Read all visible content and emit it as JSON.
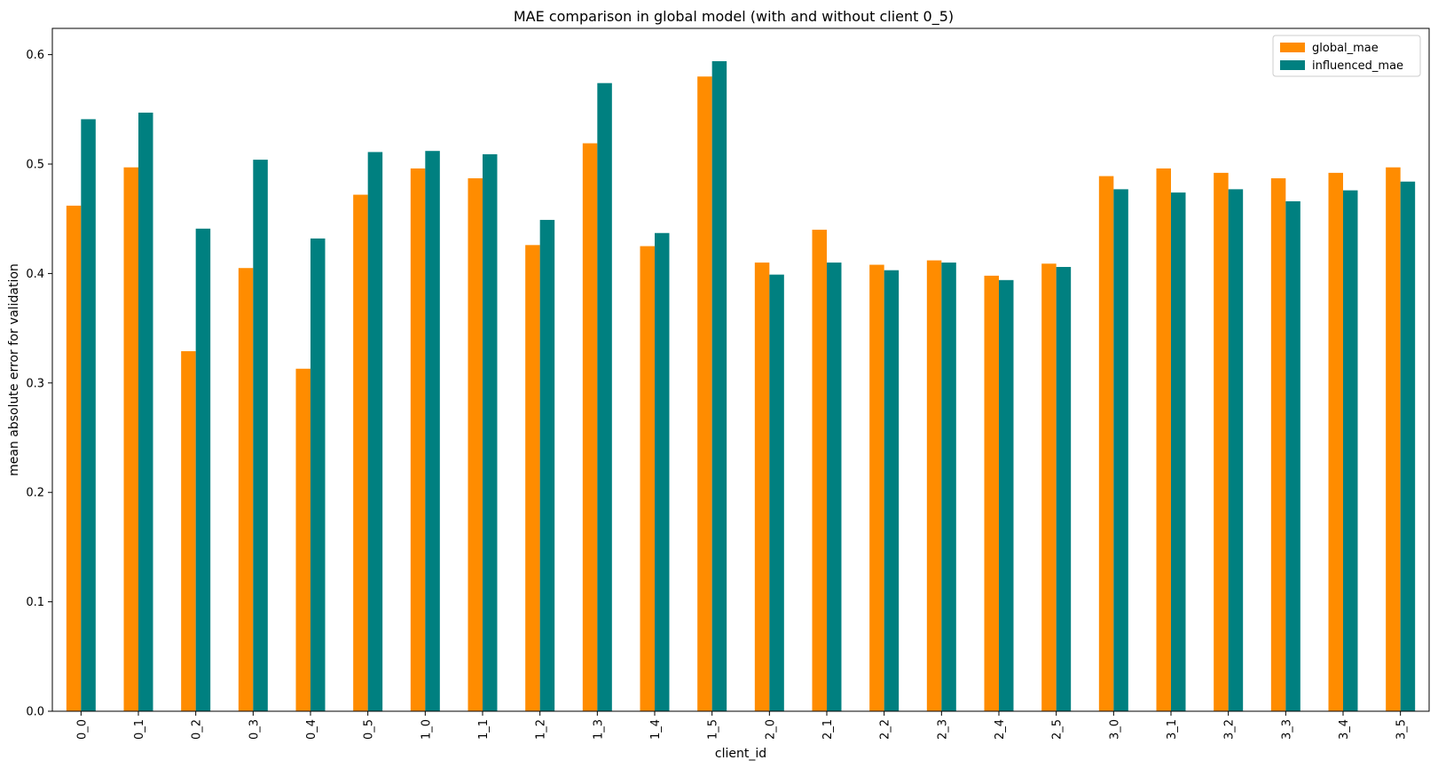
{
  "chart_data": {
    "type": "bar",
    "title": "MAE comparison in global model (with and without client 0_5)",
    "xlabel": "client_id",
    "ylabel": "mean absolute error for validation",
    "ylim": [
      0,
      0.624
    ],
    "yticks": [
      "0.0",
      "0.1",
      "0.2",
      "0.3",
      "0.4",
      "0.5",
      "0.6"
    ],
    "grid": false,
    "legend_position": "top-right",
    "categories": [
      "0_0",
      "0_1",
      "0_2",
      "0_3",
      "0_4",
      "0_5",
      "1_0",
      "1_1",
      "1_2",
      "1_3",
      "1_4",
      "1_5",
      "2_0",
      "2_1",
      "2_2",
      "2_3",
      "2_4",
      "2_5",
      "3_0",
      "3_1",
      "3_2",
      "3_3",
      "3_4",
      "3_5"
    ],
    "series": [
      {
        "name": "global_mae",
        "color": "#ff8c00",
        "values": [
          0.462,
          0.497,
          0.329,
          0.405,
          0.313,
          0.472,
          0.496,
          0.487,
          0.426,
          0.519,
          0.425,
          0.58,
          0.41,
          0.44,
          0.408,
          0.412,
          0.398,
          0.409,
          0.489,
          0.496,
          0.492,
          0.487,
          0.492,
          0.497
        ]
      },
      {
        "name": "influenced_mae",
        "color": "#008080",
        "values": [
          0.541,
          0.547,
          0.441,
          0.504,
          0.432,
          0.511,
          0.512,
          0.509,
          0.449,
          0.574,
          0.437,
          0.594,
          0.399,
          0.41,
          0.403,
          0.41,
          0.394,
          0.406,
          0.477,
          0.474,
          0.477,
          0.466,
          0.476,
          0.484
        ]
      }
    ]
  }
}
